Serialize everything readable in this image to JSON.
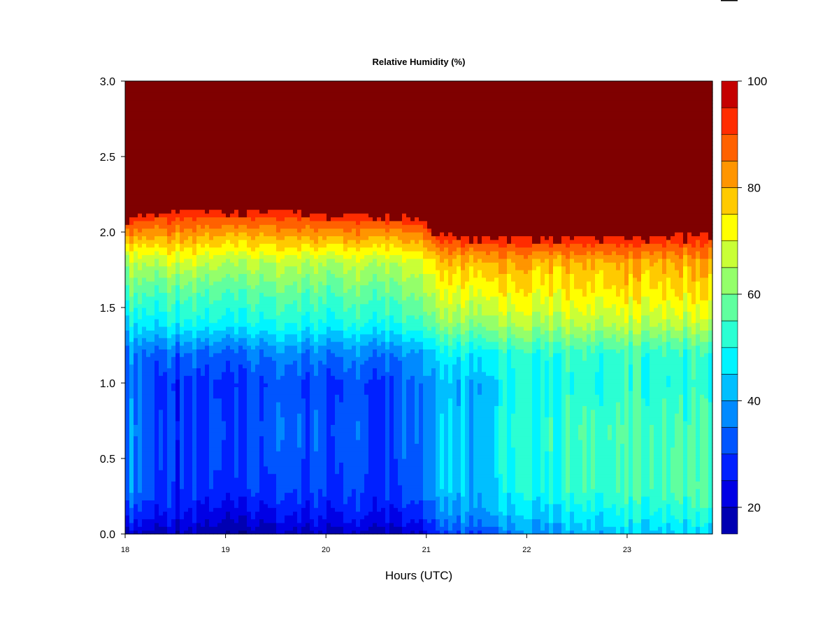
{
  "chart_data": {
    "type": "heatmap",
    "title": "Relative Humidity (%)",
    "xlabel": "Hours (UTC)",
    "ylabel": "",
    "xlim": [
      18,
      23.85
    ],
    "ylim": [
      0,
      3
    ],
    "x_ticks": [
      "18",
      "19",
      "20",
      "21",
      "22",
      "23"
    ],
    "y_ticks": [
      "0.0",
      "0.5",
      "1.0",
      "1.5",
      "2.0",
      "2.5",
      "3.0"
    ],
    "colorbar": {
      "range": [
        15,
        100
      ],
      "levels": [
        15,
        20,
        25,
        30,
        35,
        40,
        45,
        50,
        55,
        60,
        65,
        70,
        75,
        80,
        85,
        90,
        95,
        100
      ],
      "tick_labels": [
        "20",
        "40",
        "60",
        "80",
        "100"
      ],
      "colors": [
        "#00007F",
        "#0000B2",
        "#0000E5",
        "#0020FF",
        "#0055FF",
        "#008AFF",
        "#00BFFF",
        "#00F4FF",
        "#2BFFD3",
        "#60FF9F",
        "#94FF6A",
        "#C9FF36",
        "#FFFF00",
        "#FFCA00",
        "#FF9500",
        "#FF6100",
        "#FF2C00",
        "#C40000",
        "#7F0000"
      ]
    },
    "profile_anchors": [
      {
        "x": 18.0,
        "top": 2.1,
        "rh_0": 25,
        "rh_0_1": 33,
        "rh_0_3": 43,
        "rh_0_7": 44,
        "rh_1_0": 41,
        "rh_1_2": 42,
        "rh_1_4": 52,
        "rh_1_6": 62,
        "rh_1_8": 70
      },
      {
        "x": 18.5,
        "top": 2.15,
        "rh_0": 22,
        "rh_0_1": 28,
        "rh_0_3": 32,
        "rh_0_7": 33,
        "rh_1_0": 32,
        "rh_1_2": 38,
        "rh_1_4": 53,
        "rh_1_6": 60,
        "rh_1_8": 72
      },
      {
        "x": 19.0,
        "top": 2.15,
        "rh_0": 22,
        "rh_0_1": 27,
        "rh_0_3": 35,
        "rh_0_7": 37,
        "rh_1_0": 35,
        "rh_1_2": 40,
        "rh_1_4": 55,
        "rh_1_6": 62,
        "rh_1_8": 72
      },
      {
        "x": 19.5,
        "top": 2.15,
        "rh_0": 22,
        "rh_0_1": 28,
        "rh_0_3": 35,
        "rh_0_7": 38,
        "rh_1_0": 36,
        "rh_1_2": 42,
        "rh_1_4": 55,
        "rh_1_6": 62,
        "rh_1_8": 71
      },
      {
        "x": 20.0,
        "top": 2.12,
        "rh_0": 24,
        "rh_0_1": 30,
        "rh_0_3": 36,
        "rh_0_7": 38,
        "rh_1_0": 36,
        "rh_1_2": 42,
        "rh_1_4": 55,
        "rh_1_6": 62,
        "rh_1_8": 71
      },
      {
        "x": 20.5,
        "top": 2.12,
        "rh_0": 24,
        "rh_0_1": 30,
        "rh_0_3": 35,
        "rh_0_7": 36,
        "rh_1_0": 35,
        "rh_1_2": 42,
        "rh_1_4": 56,
        "rh_1_6": 63,
        "rh_1_8": 72
      },
      {
        "x": 20.95,
        "top": 2.1,
        "rh_0": 26,
        "rh_0_1": 32,
        "rh_0_3": 40,
        "rh_0_7": 42,
        "rh_1_0": 42,
        "rh_1_2": 46,
        "rh_1_4": 60,
        "rh_1_6": 68,
        "rh_1_8": 75
      },
      {
        "x": 21.1,
        "top": 2.0,
        "rh_0": 36,
        "rh_0_1": 42,
        "rh_0_3": 49,
        "rh_0_7": 49,
        "rh_1_0": 48,
        "rh_1_2": 54,
        "rh_1_4": 68,
        "rh_1_6": 76,
        "rh_1_8": 84
      },
      {
        "x": 21.6,
        "top": 1.97,
        "rh_0": 37,
        "rh_0_1": 44,
        "rh_0_3": 49,
        "rh_0_7": 49,
        "rh_1_0": 48,
        "rh_1_2": 54,
        "rh_1_4": 68,
        "rh_1_6": 77,
        "rh_1_8": 85
      },
      {
        "x": 21.85,
        "top": 1.97,
        "rh_0": 41,
        "rh_0_1": 47,
        "rh_0_3": 54,
        "rh_0_7": 56,
        "rh_1_0": 54,
        "rh_1_2": 57,
        "rh_1_4": 70,
        "rh_1_6": 78,
        "rh_1_8": 85
      },
      {
        "x": 22.5,
        "top": 1.97,
        "rh_0": 46,
        "rh_0_1": 50,
        "rh_0_3": 58,
        "rh_0_7": 59,
        "rh_1_0": 56,
        "rh_1_2": 58,
        "rh_1_4": 71,
        "rh_1_6": 78,
        "rh_1_8": 84
      },
      {
        "x": 23.0,
        "top": 1.97,
        "rh_0": 48,
        "rh_0_1": 53,
        "rh_0_3": 59,
        "rh_0_7": 60,
        "rh_1_0": 57,
        "rh_1_2": 58,
        "rh_1_4": 71,
        "rh_1_6": 79,
        "rh_1_8": 85
      },
      {
        "x": 23.85,
        "top": 2.0,
        "rh_0": 50,
        "rh_0_1": 55,
        "rh_0_3": 63,
        "rh_0_7": 60,
        "rh_1_0": 57,
        "rh_1_2": 58,
        "rh_1_4": 72,
        "rh_1_6": 80,
        "rh_1_8": 86
      }
    ],
    "grid": false,
    "legend": "colorbar-right"
  }
}
